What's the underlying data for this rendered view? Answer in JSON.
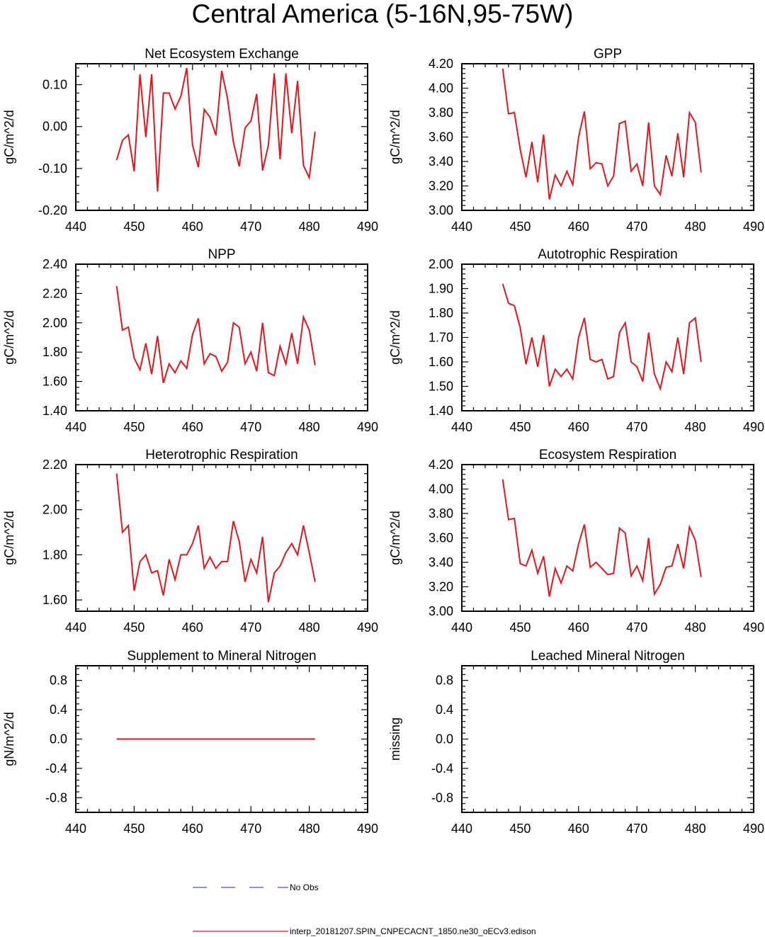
{
  "title": "Central America (5-16N,95-75W)",
  "legend": [
    {
      "label": "No Obs",
      "color": "#4a4adf",
      "dash": true
    },
    {
      "label": "interp_20181207.SPIN_CNPECACNT_1850.ne30_oECv3.edison",
      "color": "#e8141c",
      "dash": false
    }
  ],
  "chart_data": [
    {
      "type": "line",
      "title": "Net Ecosystem Exchange",
      "ylabel": "gC/m^2/d",
      "xlim": [
        440,
        490
      ],
      "ylim": [
        -0.2,
        0.15
      ],
      "xticks": [
        440,
        450,
        460,
        470,
        480,
        490
      ],
      "yticks": [
        -0.2,
        -0.1,
        0.0,
        0.1
      ],
      "ytick_labels": [
        "-0.20",
        "-0.10",
        "0.00",
        "0.10"
      ],
      "series": [
        {
          "name": "interp_20181207.SPIN_CNPECACNT_1850.ne30_oECv3.edison",
          "color": "#e8141c",
          "x": [
            447,
            448,
            449,
            450,
            451,
            452,
            453,
            454,
            455,
            456,
            457,
            458,
            459,
            460,
            461,
            462,
            463,
            464,
            465,
            466,
            467,
            468,
            469,
            470,
            471,
            472,
            473,
            474,
            475,
            476,
            477,
            478,
            479,
            480,
            481
          ],
          "values": [
            -0.08,
            -0.033,
            -0.02,
            -0.107,
            0.125,
            -0.025,
            0.125,
            -0.155,
            0.08,
            0.08,
            0.042,
            0.072,
            0.14,
            -0.044,
            -0.097,
            0.041,
            0.022,
            -0.021,
            0.133,
            0.067,
            -0.037,
            -0.095,
            -0.003,
            0.013,
            0.078,
            -0.105,
            -0.044,
            0.127,
            -0.078,
            0.127,
            -0.016,
            0.109,
            -0.093,
            -0.122,
            -0.012
          ]
        }
      ]
    },
    {
      "type": "line",
      "title": "GPP",
      "ylabel": "gC/m^2/d",
      "xlim": [
        440,
        490
      ],
      "ylim": [
        3.0,
        4.2
      ],
      "xticks": [
        440,
        450,
        460,
        470,
        480,
        490
      ],
      "yticks": [
        3.0,
        3.2,
        3.4,
        3.6,
        3.8,
        4.0,
        4.2
      ],
      "ytick_labels": [
        "3.00",
        "3.20",
        "3.40",
        "3.60",
        "3.80",
        "4.00",
        "4.20"
      ],
      "series": [
        {
          "name": "interp_20181207.SPIN_CNPECACNT_1850.ne30_oECv3.edison",
          "color": "#e8141c",
          "x": [
            447,
            448,
            449,
            450,
            451,
            452,
            453,
            454,
            455,
            456,
            457,
            458,
            459,
            460,
            461,
            462,
            463,
            464,
            465,
            466,
            467,
            468,
            469,
            470,
            471,
            472,
            473,
            474,
            475,
            476,
            477,
            478,
            479,
            480,
            481
          ],
          "values": [
            4.16,
            3.79,
            3.8,
            3.5,
            3.27,
            3.56,
            3.23,
            3.62,
            3.09,
            3.29,
            3.2,
            3.32,
            3.21,
            3.6,
            3.81,
            3.34,
            3.39,
            3.38,
            3.2,
            3.28,
            3.71,
            3.73,
            3.32,
            3.38,
            3.2,
            3.72,
            3.2,
            3.13,
            3.45,
            3.28,
            3.63,
            3.27,
            3.8,
            3.72,
            3.31
          ]
        }
      ]
    },
    {
      "type": "line",
      "title": "NPP",
      "ylabel": "gC/m^2/d",
      "xlim": [
        440,
        490
      ],
      "ylim": [
        1.4,
        2.4
      ],
      "xticks": [
        440,
        450,
        460,
        470,
        480,
        490
      ],
      "yticks": [
        1.4,
        1.6,
        1.8,
        2.0,
        2.2,
        2.4
      ],
      "ytick_labels": [
        "1.40",
        "1.60",
        "1.80",
        "2.00",
        "2.20",
        "2.40"
      ],
      "series": [
        {
          "name": "interp_20181207.SPIN_CNPECACNT_1850.ne30_oECv3.edison",
          "color": "#e8141c",
          "x": [
            447,
            448,
            449,
            450,
            451,
            452,
            453,
            454,
            455,
            456,
            457,
            458,
            459,
            460,
            461,
            462,
            463,
            464,
            465,
            466,
            467,
            468,
            469,
            470,
            471,
            472,
            473,
            474,
            475,
            476,
            477,
            478,
            479,
            480,
            481
          ],
          "values": [
            2.25,
            1.95,
            1.97,
            1.76,
            1.68,
            1.86,
            1.65,
            1.91,
            1.59,
            1.72,
            1.66,
            1.74,
            1.69,
            1.92,
            2.03,
            1.72,
            1.79,
            1.77,
            1.67,
            1.73,
            2.0,
            1.97,
            1.72,
            1.8,
            1.67,
            2.0,
            1.66,
            1.64,
            1.84,
            1.72,
            1.93,
            1.72,
            2.04,
            1.95,
            1.71
          ]
        }
      ]
    },
    {
      "type": "line",
      "title": "Autotrophic Respiration",
      "ylabel": "gC/m^2/d",
      "xlim": [
        440,
        490
      ],
      "ylim": [
        1.4,
        2.0
      ],
      "xticks": [
        440,
        450,
        460,
        470,
        480,
        490
      ],
      "yticks": [
        1.4,
        1.5,
        1.6,
        1.7,
        1.8,
        1.9,
        2.0
      ],
      "ytick_labels": [
        "1.40",
        "1.50",
        "1.60",
        "1.70",
        "1.80",
        "1.90",
        "2.00"
      ],
      "series": [
        {
          "name": "interp_20181207.SPIN_CNPECACNT_1850.ne30_oECv3.edison",
          "color": "#e8141c",
          "x": [
            447,
            448,
            449,
            450,
            451,
            452,
            453,
            454,
            455,
            456,
            457,
            458,
            459,
            460,
            461,
            462,
            463,
            464,
            465,
            466,
            467,
            468,
            469,
            470,
            471,
            472,
            473,
            474,
            475,
            476,
            477,
            478,
            479,
            480,
            481
          ],
          "values": [
            1.92,
            1.84,
            1.83,
            1.74,
            1.59,
            1.7,
            1.58,
            1.71,
            1.5,
            1.57,
            1.54,
            1.57,
            1.53,
            1.7,
            1.78,
            1.61,
            1.6,
            1.61,
            1.53,
            1.54,
            1.72,
            1.76,
            1.6,
            1.58,
            1.52,
            1.72,
            1.55,
            1.49,
            1.6,
            1.56,
            1.7,
            1.55,
            1.76,
            1.78,
            1.6
          ]
        }
      ]
    },
    {
      "type": "line",
      "title": "Heterotrophic Respiration",
      "ylabel": "gC/m^2/d",
      "xlim": [
        440,
        490
      ],
      "ylim": [
        1.55,
        2.2
      ],
      "xticks": [
        440,
        450,
        460,
        470,
        480,
        490
      ],
      "yticks": [
        1.6,
        1.8,
        2.0,
        2.2
      ],
      "ytick_labels": [
        "1.60",
        "1.80",
        "2.00",
        "2.20"
      ],
      "series": [
        {
          "name": "interp_20181207.SPIN_CNPECACNT_1850.ne30_oECv3.edison",
          "color": "#e8141c",
          "x": [
            447,
            448,
            449,
            450,
            451,
            452,
            453,
            454,
            455,
            456,
            457,
            458,
            459,
            460,
            461,
            462,
            463,
            464,
            465,
            466,
            467,
            468,
            469,
            470,
            471,
            472,
            473,
            474,
            475,
            476,
            477,
            478,
            479,
            480,
            481
          ],
          "values": [
            2.16,
            1.9,
            1.93,
            1.64,
            1.77,
            1.8,
            1.72,
            1.73,
            1.62,
            1.78,
            1.69,
            1.8,
            1.8,
            1.85,
            1.93,
            1.74,
            1.79,
            1.74,
            1.77,
            1.77,
            1.95,
            1.86,
            1.68,
            1.78,
            1.72,
            1.88,
            1.59,
            1.72,
            1.75,
            1.81,
            1.85,
            1.8,
            1.93,
            1.81,
            1.68
          ]
        }
      ]
    },
    {
      "type": "line",
      "title": "Ecosystem Respiration",
      "ylabel": "gC/m^2/d",
      "xlim": [
        440,
        490
      ],
      "ylim": [
        3.0,
        4.2
      ],
      "xticks": [
        440,
        450,
        460,
        470,
        480,
        490
      ],
      "yticks": [
        3.0,
        3.2,
        3.4,
        3.6,
        3.8,
        4.0,
        4.2
      ],
      "ytick_labels": [
        "3.00",
        "3.20",
        "3.40",
        "3.60",
        "3.80",
        "4.00",
        "4.20"
      ],
      "series": [
        {
          "name": "interp_20181207.SPIN_CNPECACNT_1850.ne30_oECv3.edison",
          "color": "#e8141c",
          "x": [
            447,
            448,
            449,
            450,
            451,
            452,
            453,
            454,
            455,
            456,
            457,
            458,
            459,
            460,
            461,
            462,
            463,
            464,
            465,
            466,
            467,
            468,
            469,
            470,
            471,
            472,
            473,
            474,
            475,
            476,
            477,
            478,
            479,
            480,
            481
          ],
          "values": [
            4.08,
            3.75,
            3.76,
            3.39,
            3.37,
            3.5,
            3.31,
            3.45,
            3.12,
            3.35,
            3.23,
            3.37,
            3.33,
            3.55,
            3.71,
            3.36,
            3.4,
            3.35,
            3.3,
            3.31,
            3.68,
            3.64,
            3.29,
            3.37,
            3.25,
            3.6,
            3.14,
            3.22,
            3.36,
            3.37,
            3.55,
            3.35,
            3.69,
            3.58,
            3.28
          ]
        }
      ]
    },
    {
      "type": "line",
      "title": "Supplement to Mineral Nitrogen",
      "ylabel": "gN/m^2/d",
      "xlim": [
        440,
        490
      ],
      "ylim": [
        -1.0,
        1.0
      ],
      "xticks": [
        440,
        450,
        460,
        470,
        480,
        490
      ],
      "yticks": [
        -0.8,
        -0.4,
        0.0,
        0.4,
        0.8
      ],
      "ytick_labels": [
        "-0.8",
        "-0.4",
        "0.0",
        "0.4",
        "0.8"
      ],
      "series": [
        {
          "name": "interp_20181207.SPIN_CNPECACNT_1850.ne30_oECv3.edison",
          "color": "#e8141c",
          "x": [
            447,
            481
          ],
          "values": [
            0.0,
            0.0
          ]
        }
      ]
    },
    {
      "type": "line",
      "title": "Leached Mineral Nitrogen",
      "ylabel": "missing",
      "xlim": [
        440,
        490
      ],
      "ylim": [
        -1.0,
        1.0
      ],
      "xticks": [
        440,
        450,
        460,
        470,
        480,
        490
      ],
      "yticks": [
        -0.8,
        -0.4,
        0.0,
        0.4,
        0.8
      ],
      "ytick_labels": [
        "-0.8",
        "-0.4",
        "0.0",
        "0.4",
        "0.8"
      ],
      "series": []
    }
  ]
}
